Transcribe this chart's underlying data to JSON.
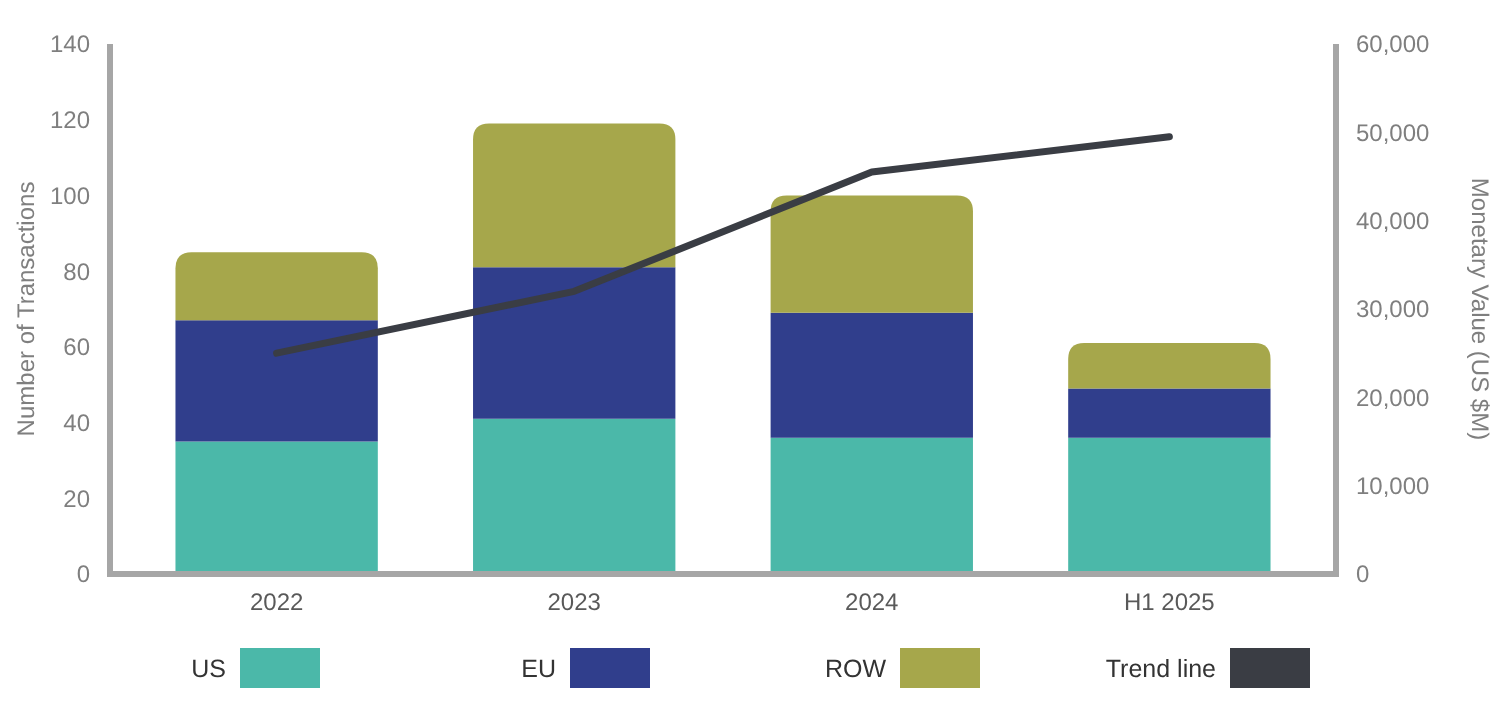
{
  "chart_data": {
    "type": "bar",
    "stacked": true,
    "categories": [
      "2022",
      "2023",
      "2024",
      "H1 2025"
    ],
    "ylabel": "Number of Transactions",
    "y2label": "Monetary Value (US $M)",
    "ylim": [
      0,
      140
    ],
    "yticks": [
      0,
      20,
      40,
      60,
      80,
      100,
      120,
      140
    ],
    "y2lim": [
      0,
      60000
    ],
    "y2ticks": [
      {
        "value": 0,
        "label": "0"
      },
      {
        "value": 10000,
        "label": "10,000"
      },
      {
        "value": 20000,
        "label": "20,000"
      },
      {
        "value": 30000,
        "label": "30,000"
      },
      {
        "value": 40000,
        "label": "40,000"
      },
      {
        "value": 50000,
        "label": "50,000"
      },
      {
        "value": 60000,
        "label": "60,000"
      }
    ],
    "grid": false,
    "legend": "bottom",
    "series": [
      {
        "name": "US",
        "color": "#4bb8a9",
        "values": [
          35,
          41,
          36,
          36
        ]
      },
      {
        "name": "EU",
        "color": "#303e8c",
        "values": [
          32,
          40,
          33,
          13
        ]
      },
      {
        "name": "ROW",
        "color": "#a6a74b",
        "values": [
          18,
          38,
          31,
          12
        ]
      },
      {
        "name": "Trend line",
        "type": "line",
        "axis": "y2",
        "color": "#3a3d44",
        "values": [
          25000,
          32000,
          45500,
          49500
        ]
      }
    ]
  }
}
